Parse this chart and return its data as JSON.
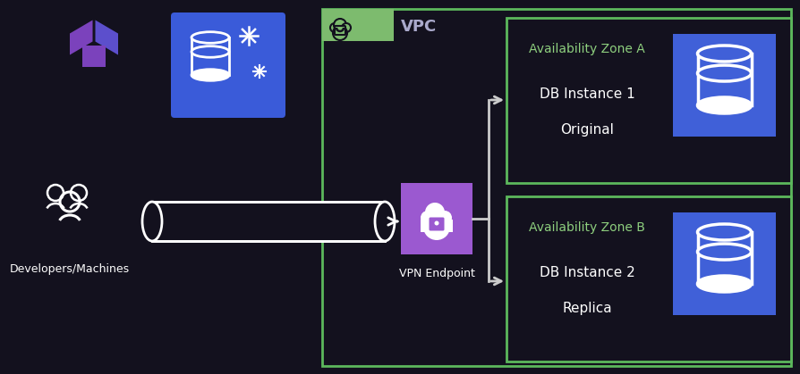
{
  "bg_color": "#13111e",
  "vpc_border_color": "#5cb85c",
  "az_border_color": "#5cb85c",
  "vpc_tab_color": "#7dbb6e",
  "arrow_color": "#cccccc",
  "text_color_white": "#ffffff",
  "text_color_green": "#8ecf7e",
  "text_color_vpc": "#aaaacc",
  "vpn_box_color_top": "#9b59d0",
  "vpn_box_color_bot": "#7040b0",
  "rds_box_color": "#3a5bd9",
  "db_box_color": "#4060d8",
  "title_vpc": "VPC",
  "label_devs": "Developers/Machines",
  "label_vpn": "VPN Endpoint",
  "az_a_title": "Availability Zone A",
  "az_a_inst": "DB Instance 1",
  "az_a_sub": "Original",
  "az_b_title": "Availability Zone B",
  "az_b_inst": "DB Instance 2",
  "az_b_sub": "Replica",
  "terraform_color1": "#7b42bc",
  "terraform_color2": "#5c4fcc"
}
